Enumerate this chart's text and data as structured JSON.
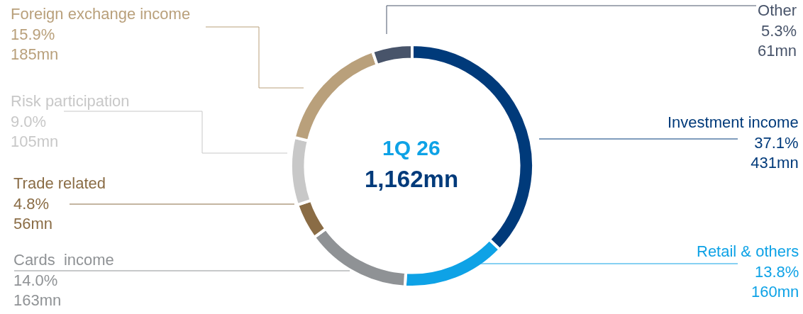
{
  "chart_data": {
    "type": "donut",
    "title": "1Q 26",
    "subtitle": "1,162mn",
    "categories": [
      "Investment income",
      "Retail & others",
      "Cards  income",
      "Trade related",
      "Risk participation",
      "Foreign exchange income",
      "Other"
    ],
    "values": [
      37.1,
      13.8,
      14.0,
      4.8,
      9.0,
      15.9,
      5.3
    ],
    "value_labels": [
      "37.1%\n431mn",
      "13.8%\n160mn",
      "14.0%\n163mn",
      "4.8%\n56mn",
      "9.0%\n105mn",
      "15.9%\n185mn",
      "5.3%\n61mn"
    ],
    "colors": [
      "#003a7a",
      "#0ea2e6",
      "#8f9295",
      "#8a6c45",
      "#c8c8c8",
      "#b9a07b",
      "#48546a"
    ]
  }
}
